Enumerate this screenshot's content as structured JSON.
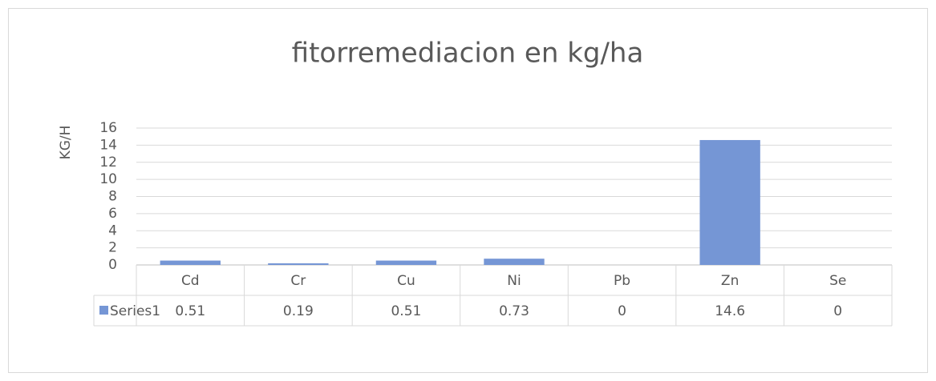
{
  "chart_data": {
    "type": "bar",
    "title": "fitorremediacion en kg/ha",
    "y_label": "KG/H",
    "categories": [
      "Cd",
      "Cr",
      "Cu",
      "Ni",
      "Pb",
      "Zn",
      "Se"
    ],
    "series": [
      {
        "name": "Series1",
        "color": "#7596d5",
        "values": [
          0.51,
          0.19,
          0.51,
          0.73,
          0,
          14.6,
          0
        ]
      }
    ],
    "ylim": [
      0,
      16
    ],
    "yticks": [
      0,
      2,
      4,
      6,
      8,
      10,
      12,
      14,
      16
    ],
    "grid": true
  }
}
